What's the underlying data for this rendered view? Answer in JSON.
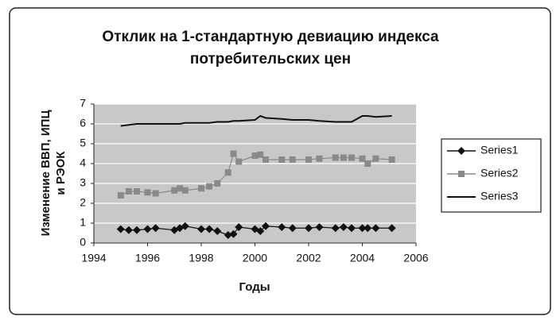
{
  "chart_data": {
    "type": "line",
    "title": [
      "Отклик на 1-стандартную девиацию индекса",
      "потребительских цен"
    ],
    "x_label": "Годы",
    "y_label": [
      "Изменение ВВП, ИПЦ",
      "и РЭОК"
    ],
    "x": [
      1995.0,
      1995.3,
      1995.6,
      1996.0,
      1996.3,
      1997.0,
      1997.2,
      1997.4,
      1998.0,
      1998.3,
      1998.6,
      1999.0,
      1999.2,
      1999.4,
      2000.0,
      2000.2,
      2000.4,
      2001.0,
      2001.4,
      2002.0,
      2002.4,
      2003.0,
      2003.3,
      2003.6,
      2004.0,
      2004.2,
      2004.5,
      2005.1
    ],
    "series": [
      {
        "name": "Series1",
        "color": "#111111",
        "marker": "diamond",
        "values": [
          0.7,
          0.65,
          0.65,
          0.7,
          0.75,
          0.65,
          0.75,
          0.85,
          0.7,
          0.7,
          0.6,
          0.4,
          0.45,
          0.8,
          0.7,
          0.6,
          0.85,
          0.8,
          0.75,
          0.75,
          0.8,
          0.75,
          0.8,
          0.75,
          0.75,
          0.75,
          0.75,
          0.75
        ]
      },
      {
        "name": "Series2",
        "color": "#8a8a8a",
        "marker": "square",
        "values": [
          2.4,
          2.6,
          2.6,
          2.55,
          2.5,
          2.65,
          2.75,
          2.65,
          2.75,
          2.85,
          3.0,
          3.55,
          4.5,
          4.1,
          4.4,
          4.45,
          4.2,
          4.2,
          4.2,
          4.2,
          4.25,
          4.3,
          4.3,
          4.3,
          4.25,
          4.0,
          4.25,
          4.2
        ]
      },
      {
        "name": "Series3",
        "color": "#111111",
        "marker": "none",
        "values": [
          5.9,
          5.95,
          6.0,
          6.0,
          6.0,
          6.0,
          6.0,
          6.05,
          6.05,
          6.05,
          6.1,
          6.1,
          6.15,
          6.15,
          6.2,
          6.4,
          6.3,
          6.25,
          6.2,
          6.2,
          6.15,
          6.1,
          6.1,
          6.1,
          6.4,
          6.4,
          6.35,
          6.4
        ]
      }
    ],
    "xlim": [
      1994,
      2006
    ],
    "xticks": [
      1994,
      1996,
      1998,
      2000,
      2002,
      2004,
      2006
    ],
    "ylim": [
      0,
      7
    ],
    "yticks": [
      0,
      1,
      2,
      3,
      4,
      5,
      6,
      7
    ],
    "grid": true
  }
}
